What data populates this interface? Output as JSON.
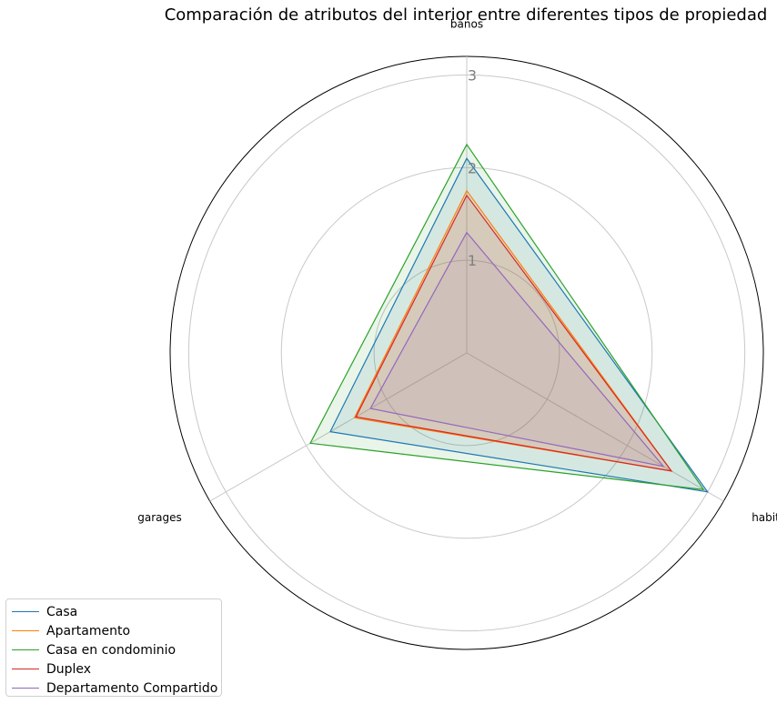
{
  "chart_data": {
    "type": "radar",
    "title": "Comparación de atributos del interior entre diferentes tipos de propiedad",
    "axes": [
      "banos",
      "habitaciones",
      "garages"
    ],
    "rlim": [
      0,
      3.2
    ],
    "radial_ticks": [
      1,
      2,
      3
    ],
    "radial_tick_labels": [
      "1",
      "2",
      "3"
    ],
    "grid": true,
    "legend_position": "lower-left",
    "series": [
      {
        "name": "Casa",
        "color": "#1f77b4",
        "values": [
          2.1,
          3.0,
          1.7
        ]
      },
      {
        "name": "Apartamento",
        "color": "#ff7f0e",
        "values": [
          1.75,
          2.55,
          1.4
        ]
      },
      {
        "name": "Casa en condominio",
        "color": "#2ca02c",
        "values": [
          2.25,
          2.95,
          1.95
        ]
      },
      {
        "name": "Duplex",
        "color": "#d62728",
        "values": [
          1.7,
          2.55,
          1.38
        ]
      },
      {
        "name": "Departamento Compartido",
        "color": "#9467bd",
        "values": [
          1.3,
          2.45,
          1.2
        ]
      }
    ]
  }
}
